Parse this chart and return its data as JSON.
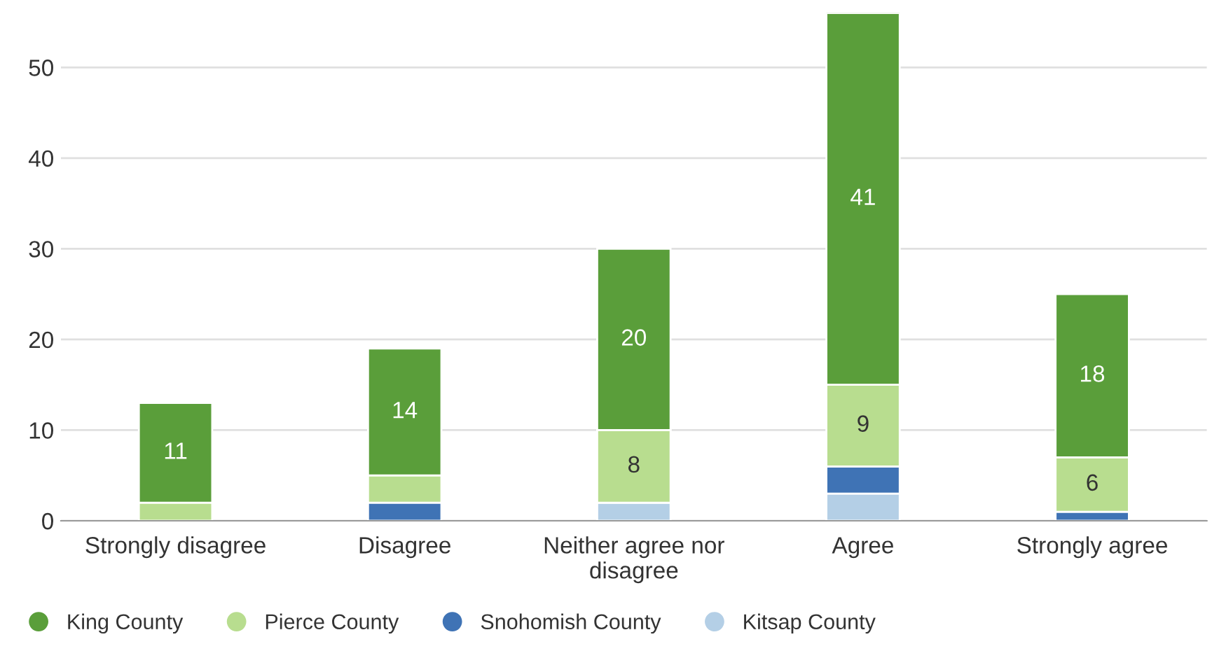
{
  "chart_data": {
    "type": "bar",
    "stacked": true,
    "categories": [
      "Strongly disagree",
      "Disagree",
      "Neither agree nor disagree",
      "Agree",
      "Strongly agree"
    ],
    "series": [
      {
        "name": "Kitsap County",
        "color": "#b4cfe6",
        "values": [
          0,
          0,
          2,
          3,
          0
        ],
        "value_labels": [
          null,
          null,
          null,
          null,
          null
        ]
      },
      {
        "name": "Snohomish County",
        "color": "#3f73b5",
        "values": [
          0,
          2,
          0,
          3,
          1
        ],
        "value_labels": [
          null,
          null,
          null,
          null,
          null
        ]
      },
      {
        "name": "Pierce County",
        "color": "#b8dd8f",
        "values": [
          2,
          3,
          8,
          9,
          6
        ],
        "value_labels": [
          null,
          null,
          "8",
          "9",
          "6"
        ]
      },
      {
        "name": "King County",
        "color": "#5a9e3a",
        "values": [
          11,
          14,
          20,
          41,
          18
        ],
        "value_labels": [
          "11",
          "14",
          "20",
          "41",
          "18"
        ]
      }
    ],
    "ylim": [
      0,
      56
    ],
    "yticks": [
      0,
      10,
      20,
      30,
      40,
      50
    ],
    "grid": "y",
    "legend": "bottom left"
  }
}
